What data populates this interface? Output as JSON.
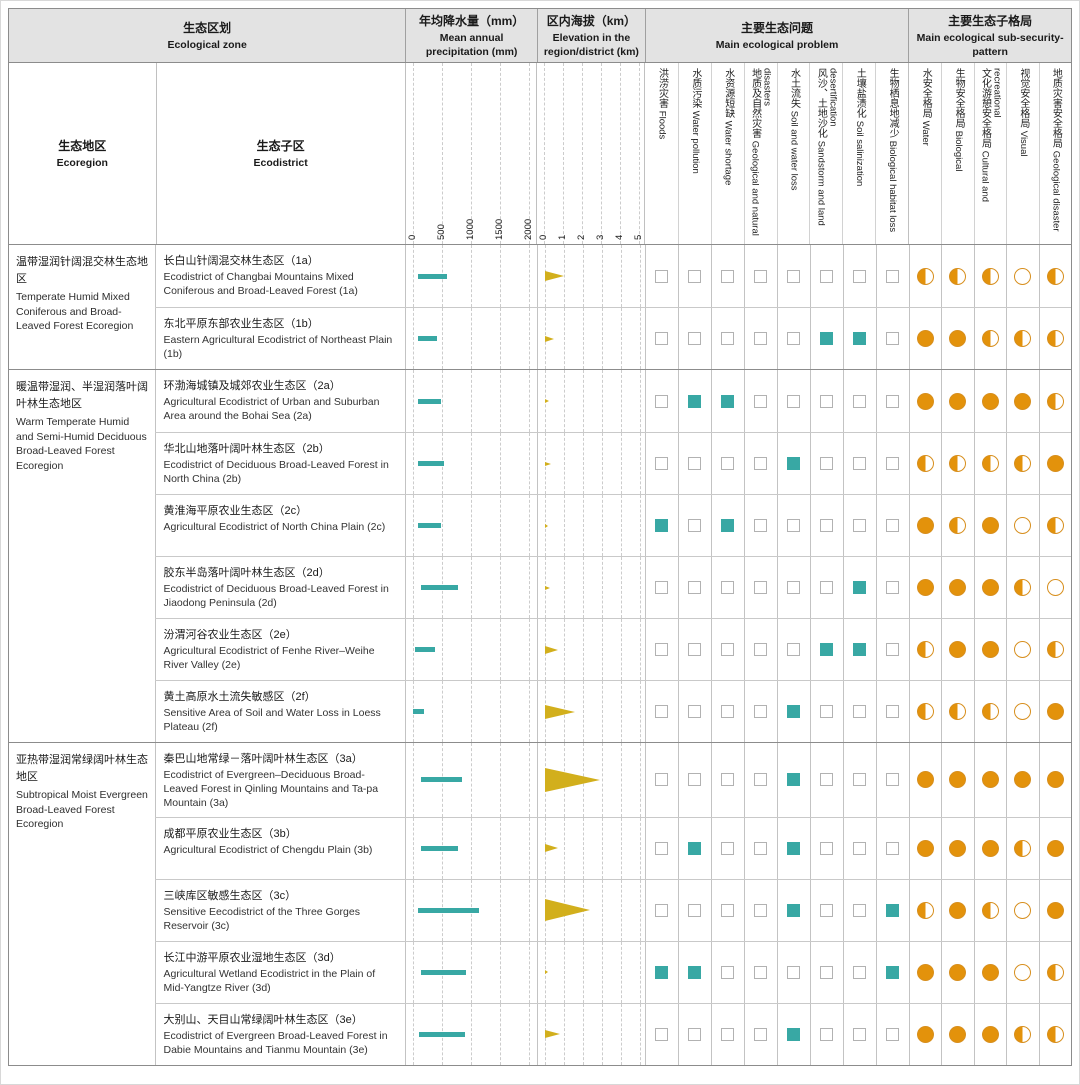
{
  "colors": {
    "teal_bar": "#38A8A4",
    "gold_triangle": "#D2AF1C",
    "orange_full": "#E3920B",
    "circle_border": "#D78F1E",
    "header_bg": "#E3E3E3"
  },
  "chart_data": {
    "type": "table",
    "header": {
      "eco_zone": {
        "zh": "生态区划",
        "en": "Ecological zone"
      },
      "precipitation": {
        "zh": "年均降水量（mm）",
        "en": "Mean annual precipitation (mm)"
      },
      "elevation": {
        "zh": "区内海拔（km）",
        "en": "Elevation in the region/district (km)"
      },
      "problems": {
        "zh": "主要生态问题",
        "en": "Main ecological problem"
      },
      "patterns": {
        "zh": "主要生态子格局",
        "en": "Main ecological sub-security-pattern"
      },
      "ecoregion": {
        "zh": "生态地区",
        "en": "Ecoregion"
      },
      "ecodistrict": {
        "zh": "生态子区",
        "en": "Ecodistrict"
      }
    },
    "axes": {
      "precipitation_ticks": [
        "0",
        "500",
        "1000",
        "1500",
        "2000"
      ],
      "precipitation_unit": "mm",
      "precipitation_range": [
        0,
        2000
      ],
      "elevation_ticks": [
        "0",
        "1",
        "2",
        "3",
        "4",
        "5"
      ],
      "elevation_unit": "km",
      "elevation_range": [
        0,
        5
      ]
    },
    "problem_columns": [
      {
        "zh": "洪涝灾害",
        "en": "Floods"
      },
      {
        "zh": "水质污染",
        "en": "Water pollution"
      },
      {
        "zh": "水资源短缺",
        "en": "Water shortage"
      },
      {
        "zh": "地质及自然灾害",
        "en": "Geological and natural disasters"
      },
      {
        "zh": "水土流失",
        "en": "Soil and water loss"
      },
      {
        "zh": "风沙、土地沙化",
        "en": "Sandstorm and land desertification"
      },
      {
        "zh": "土壤盐渍化",
        "en": "Soil salinization"
      },
      {
        "zh": "生物栖息地减少",
        "en": "Biological habitat loss"
      }
    ],
    "pattern_columns": [
      {
        "zh": "水安全格局",
        "en": "Water"
      },
      {
        "zh": "生物安全格局",
        "en": "Biological"
      },
      {
        "zh": "文化游憩安全格局",
        "en": "Cultural and recreational"
      },
      {
        "zh": "视觉安全格局",
        "en": "Visual"
      },
      {
        "zh": "地质灾害安全格局",
        "en": "Geological disaster"
      }
    ],
    "pattern_legend_values": [
      "full",
      "half",
      "empty"
    ],
    "groups": [
      {
        "region_zh": "温带湿润针阔混交林生态地区",
        "region_en": "Temperate Humid Mixed Coniferous and Broad-Leaved Forest Ecoregion",
        "rows": [
          {
            "zh": "长白山针阔混交林生态区（1a）",
            "en": "Ecodistrict of Changbai Mountains Mixed Coniferous and Broad-Leaved Forest (1a)",
            "precip_mm": [
              100,
              600
            ],
            "elevation_km": 1.0,
            "problems": [
              0,
              0,
              0,
              0,
              0,
              0,
              0,
              0
            ],
            "patterns": [
              "half",
              "half",
              "half",
              "empty",
              "half"
            ]
          },
          {
            "zh": "东北平原东部农业生态区（1b）",
            "en": "Eastern Agricultural Ecodistrict of Northeast Plain (1b)",
            "precip_mm": [
              100,
              430
            ],
            "elevation_km": 0.5,
            "problems": [
              0,
              0,
              0,
              0,
              0,
              1,
              1,
              0
            ],
            "patterns": [
              "full",
              "full",
              "half",
              "half",
              "half"
            ]
          }
        ]
      },
      {
        "region_zh": "暖温带湿润、半湿润落叶阔叶林生态地区",
        "region_en": "Warm Temperate Humid and Semi-Humid Deciduous Broad-Leaved Forest Ecoregion",
        "rows": [
          {
            "zh": "环渤海城镇及城郊农业生态区（2a）",
            "en": "Agricultural Ecodistrict of Urban and Suburban Area around the Bohai Sea (2a)",
            "precip_mm": [
              100,
              490
            ],
            "elevation_km": 0.25,
            "problems": [
              0,
              1,
              1,
              0,
              0,
              0,
              0,
              0
            ],
            "patterns": [
              "full",
              "full",
              "full",
              "full",
              "half"
            ]
          },
          {
            "zh": "华北山地落叶阔叶林生态区（2b）",
            "en": "Ecodistrict of Deciduous Broad-Leaved Forest in North China (2b)",
            "precip_mm": [
              100,
              540
            ],
            "elevation_km": 0.35,
            "problems": [
              0,
              0,
              0,
              0,
              1,
              0,
              0,
              0
            ],
            "patterns": [
              "half",
              "half",
              "half",
              "half",
              "full"
            ]
          },
          {
            "zh": "黄淮海平原农业生态区（2c）",
            "en": "Agricultural Ecodistrict of North China Plain (2c)",
            "precip_mm": [
              100,
              500
            ],
            "elevation_km": 0.2,
            "problems": [
              1,
              0,
              1,
              0,
              0,
              0,
              0,
              0
            ],
            "patterns": [
              "full",
              "half",
              "full",
              "empty",
              "half"
            ]
          },
          {
            "zh": "胶东半岛落叶阔叶林生态区（2d）",
            "en": "Ecodistrict of Deciduous Broad-Leaved Forest in Jiaodong Peninsula (2d)",
            "precip_mm": [
              150,
              780
            ],
            "elevation_km": 0.3,
            "problems": [
              0,
              0,
              0,
              0,
              0,
              0,
              1,
              0
            ],
            "patterns": [
              "full",
              "full",
              "full",
              "half",
              "empty"
            ]
          },
          {
            "zh": "汾渭河谷农业生态区（2e）",
            "en": "Agricultural Ecodistrict of Fenhe River–Weihe River Valley (2e)",
            "precip_mm": [
              50,
              390
            ],
            "elevation_km": 0.7,
            "problems": [
              0,
              0,
              0,
              0,
              0,
              1,
              1,
              0
            ],
            "patterns": [
              "half",
              "full",
              "full",
              "empty",
              "half"
            ]
          },
          {
            "zh": "黄土高原水土流失敏感区（2f）",
            "en": "Sensitive Area of Soil and Water Loss in Loess Plateau (2f)",
            "precip_mm": [
              0,
              190
            ],
            "elevation_km": 1.6,
            "problems": [
              0,
              0,
              0,
              0,
              1,
              0,
              0,
              0
            ],
            "patterns": [
              "half",
              "half",
              "half",
              "empty",
              "full"
            ]
          }
        ]
      },
      {
        "region_zh": "亚热带湿润常绿阔叶林生态地区",
        "region_en": "Subtropical Moist Evergreen Broad-Leaved Forest Ecoregion",
        "rows": [
          {
            "zh": "秦巴山地常绿－落叶阔叶林生态区（3a）",
            "en": "Ecodistrict of Evergreen–Deciduous Broad-Leaved Forest in Qinling Mountains and Ta-pa Mountain (3a)",
            "precip_mm": [
              150,
              860
            ],
            "elevation_km": 2.9,
            "problems": [
              0,
              0,
              0,
              0,
              1,
              0,
              0,
              0
            ],
            "patterns": [
              "full",
              "full",
              "full",
              "full",
              "full"
            ]
          },
          {
            "zh": "成都平原农业生态区（3b）",
            "en": "Agricultural Ecodistrict of Chengdu Plain (3b)",
            "precip_mm": [
              150,
              790
            ],
            "elevation_km": 0.7,
            "problems": [
              0,
              1,
              0,
              0,
              1,
              0,
              0,
              0
            ],
            "patterns": [
              "full",
              "full",
              "full",
              "half",
              "full"
            ]
          },
          {
            "zh": "三峡库区敏感生态区（3c）",
            "en": "Sensitive Eecodistrict of the Three Gorges Reservoir (3c)",
            "precip_mm": [
              100,
              1150
            ],
            "elevation_km": 2.4,
            "problems": [
              0,
              0,
              0,
              0,
              1,
              0,
              0,
              1
            ],
            "patterns": [
              "half",
              "full",
              "half",
              "empty",
              "full"
            ]
          },
          {
            "zh": "长江中游平原农业湿地生态区（3d）",
            "en": "Agricultural Wetland Ecodistrict in the Plain of Mid-Yangtze River (3d)",
            "precip_mm": [
              150,
              930
            ],
            "elevation_km": 0.2,
            "problems": [
              1,
              1,
              0,
              0,
              0,
              0,
              0,
              1
            ],
            "patterns": [
              "full",
              "full",
              "full",
              "empty",
              "half"
            ]
          },
          {
            "zh": "大别山、天目山常绿阔叶林生态区（3e）",
            "en": "Ecodistrict of Evergreen Broad-Leaved Forest in Dabie Mountains and Tianmu Mountain (3e)",
            "precip_mm": [
              120,
              900
            ],
            "elevation_km": 0.8,
            "problems": [
              0,
              0,
              0,
              0,
              1,
              0,
              0,
              0
            ],
            "patterns": [
              "full",
              "full",
              "full",
              "half",
              "half"
            ]
          }
        ]
      }
    ]
  }
}
